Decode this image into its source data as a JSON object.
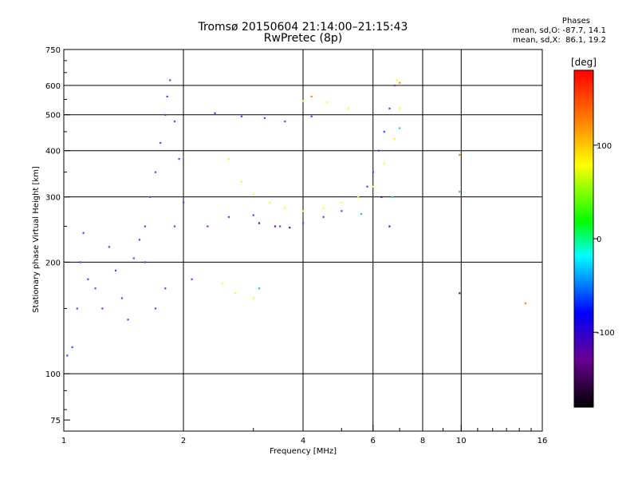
{
  "header": {
    "title_line1": "Tromsø 20150604 21:14:00–21:15:43",
    "title_line2": "RwPretec (8p)"
  },
  "stats": {
    "label": "Phases",
    "line_o": "mean, sd,O: -87.7, 14.1",
    "line_x": "mean, sd,X:  86.1, 19.2"
  },
  "chart_data": {
    "type": "scatter",
    "xlabel": "Frequency [MHz]",
    "ylabel": "Stationary phase Virtual Height [km]",
    "x_scale": "log",
    "y_scale": "log",
    "xlim": [
      1,
      16
    ],
    "ylim": [
      70,
      750
    ],
    "x_ticks": [
      1,
      2,
      4,
      6,
      8,
      10,
      16
    ],
    "y_ticks": [
      75,
      100,
      200,
      300,
      400,
      500,
      600,
      750
    ],
    "x_grid": [
      2,
      4,
      6,
      8,
      10
    ],
    "y_grid": [
      100,
      200,
      300,
      400,
      500,
      600
    ],
    "colorbar": {
      "label": "[deg]",
      "range": [
        -180,
        180
      ],
      "ticks": [
        -100,
        0,
        100
      ],
      "colors": [
        "#000000",
        "#6a0090",
        "#0000ff",
        "#00ffff",
        "#00ff00",
        "#ffff00",
        "#ff8000",
        "#ff0000"
      ]
    },
    "series": [
      {
        "color": "#2a55ff",
        "points": [
          [
            1.02,
            112
          ],
          [
            1.05,
            118
          ],
          [
            1.08,
            150
          ],
          [
            1.1,
            200
          ],
          [
            1.12,
            240
          ],
          [
            1.15,
            180
          ],
          [
            1.2,
            170
          ],
          [
            1.25,
            150
          ],
          [
            1.3,
            220
          ],
          [
            1.35,
            190
          ],
          [
            1.4,
            160
          ],
          [
            1.45,
            140
          ],
          [
            1.5,
            205
          ],
          [
            1.55,
            230
          ],
          [
            1.6,
            250
          ],
          [
            1.65,
            300
          ],
          [
            1.7,
            350
          ],
          [
            1.75,
            420
          ],
          [
            1.8,
            500
          ],
          [
            1.82,
            560
          ],
          [
            1.85,
            620
          ],
          [
            1.9,
            480
          ],
          [
            1.95,
            380
          ],
          [
            2.0,
            290
          ],
          [
            1.9,
            250
          ],
          [
            1.8,
            170
          ],
          [
            1.7,
            150
          ],
          [
            1.6,
            200
          ],
          [
            2.1,
            180
          ],
          [
            2.3,
            250
          ],
          [
            2.6,
            265
          ],
          [
            3.0,
            268
          ],
          [
            3.5,
            250
          ],
          [
            4.0,
            255
          ],
          [
            4.5,
            265
          ],
          [
            5.0,
            275
          ],
          [
            5.5,
            300
          ],
          [
            5.8,
            320
          ],
          [
            6.0,
            350
          ],
          [
            6.2,
            400
          ],
          [
            6.4,
            450
          ],
          [
            6.6,
            520
          ],
          [
            6.8,
            600
          ],
          [
            2.4,
            505
          ],
          [
            2.8,
            495
          ],
          [
            3.2,
            490
          ],
          [
            3.6,
            480
          ],
          [
            4.2,
            495
          ]
        ]
      },
      {
        "color": "#ffff00",
        "points": [
          [
            2.6,
            380
          ],
          [
            2.8,
            330
          ],
          [
            3.0,
            305
          ],
          [
            3.3,
            290
          ],
          [
            3.6,
            280
          ],
          [
            4.0,
            275
          ],
          [
            4.5,
            280
          ],
          [
            5.0,
            290
          ],
          [
            5.5,
            300
          ],
          [
            6.0,
            320
          ],
          [
            6.4,
            370
          ],
          [
            6.8,
            430
          ],
          [
            7.0,
            520
          ],
          [
            6.9,
            620
          ],
          [
            4.0,
            545
          ],
          [
            4.6,
            540
          ],
          [
            5.2,
            520
          ],
          [
            2.5,
            175
          ],
          [
            2.7,
            165
          ],
          [
            3.0,
            160
          ]
        ]
      },
      {
        "color": "#00ee55",
        "points": [
          [
            7.0,
            460
          ],
          [
            6.7,
            300
          ],
          [
            5.6,
            270
          ],
          [
            3.1,
            170
          ],
          [
            9.9,
            310
          ]
        ]
      },
      {
        "color": "#6a00b0",
        "points": [
          [
            3.1,
            255
          ],
          [
            3.4,
            250
          ],
          [
            3.7,
            248
          ],
          [
            6.3,
            300
          ],
          [
            6.6,
            250
          ],
          [
            9.9,
            165
          ]
        ]
      },
      {
        "color": "#ff8000",
        "points": [
          [
            7.0,
            610
          ],
          [
            4.2,
            560
          ],
          [
            9.9,
            390
          ],
          [
            14.5,
            155
          ]
        ]
      }
    ]
  }
}
